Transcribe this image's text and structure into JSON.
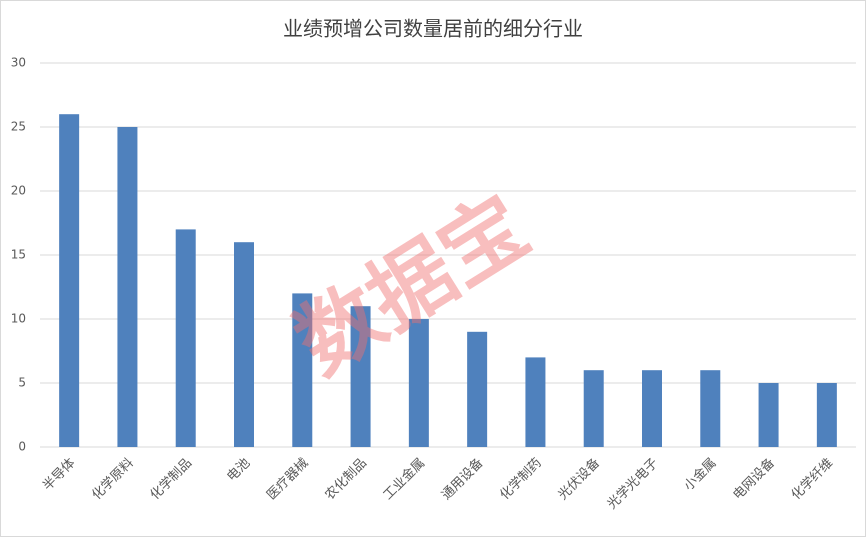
{
  "chart_data": {
    "type": "bar",
    "title": "业绩预增公司数量居前的细分行业",
    "categories": [
      "半导体",
      "化学原料",
      "化学制品",
      "电池",
      "医疗器械",
      "农化制品",
      "工业金属",
      "通用设备",
      "化学制药",
      "光伏设备",
      "光学光电子",
      "小金属",
      "电网设备",
      "化学纤维"
    ],
    "values": [
      26,
      25,
      17,
      16,
      12,
      11,
      10,
      9,
      7,
      6,
      6,
      6,
      5,
      5
    ],
    "color": "#4f81bd",
    "ylim": [
      0,
      30
    ],
    "yticks": [
      0,
      5,
      10,
      15,
      20,
      25,
      30
    ],
    "grid": true,
    "watermark": "数据宝"
  }
}
